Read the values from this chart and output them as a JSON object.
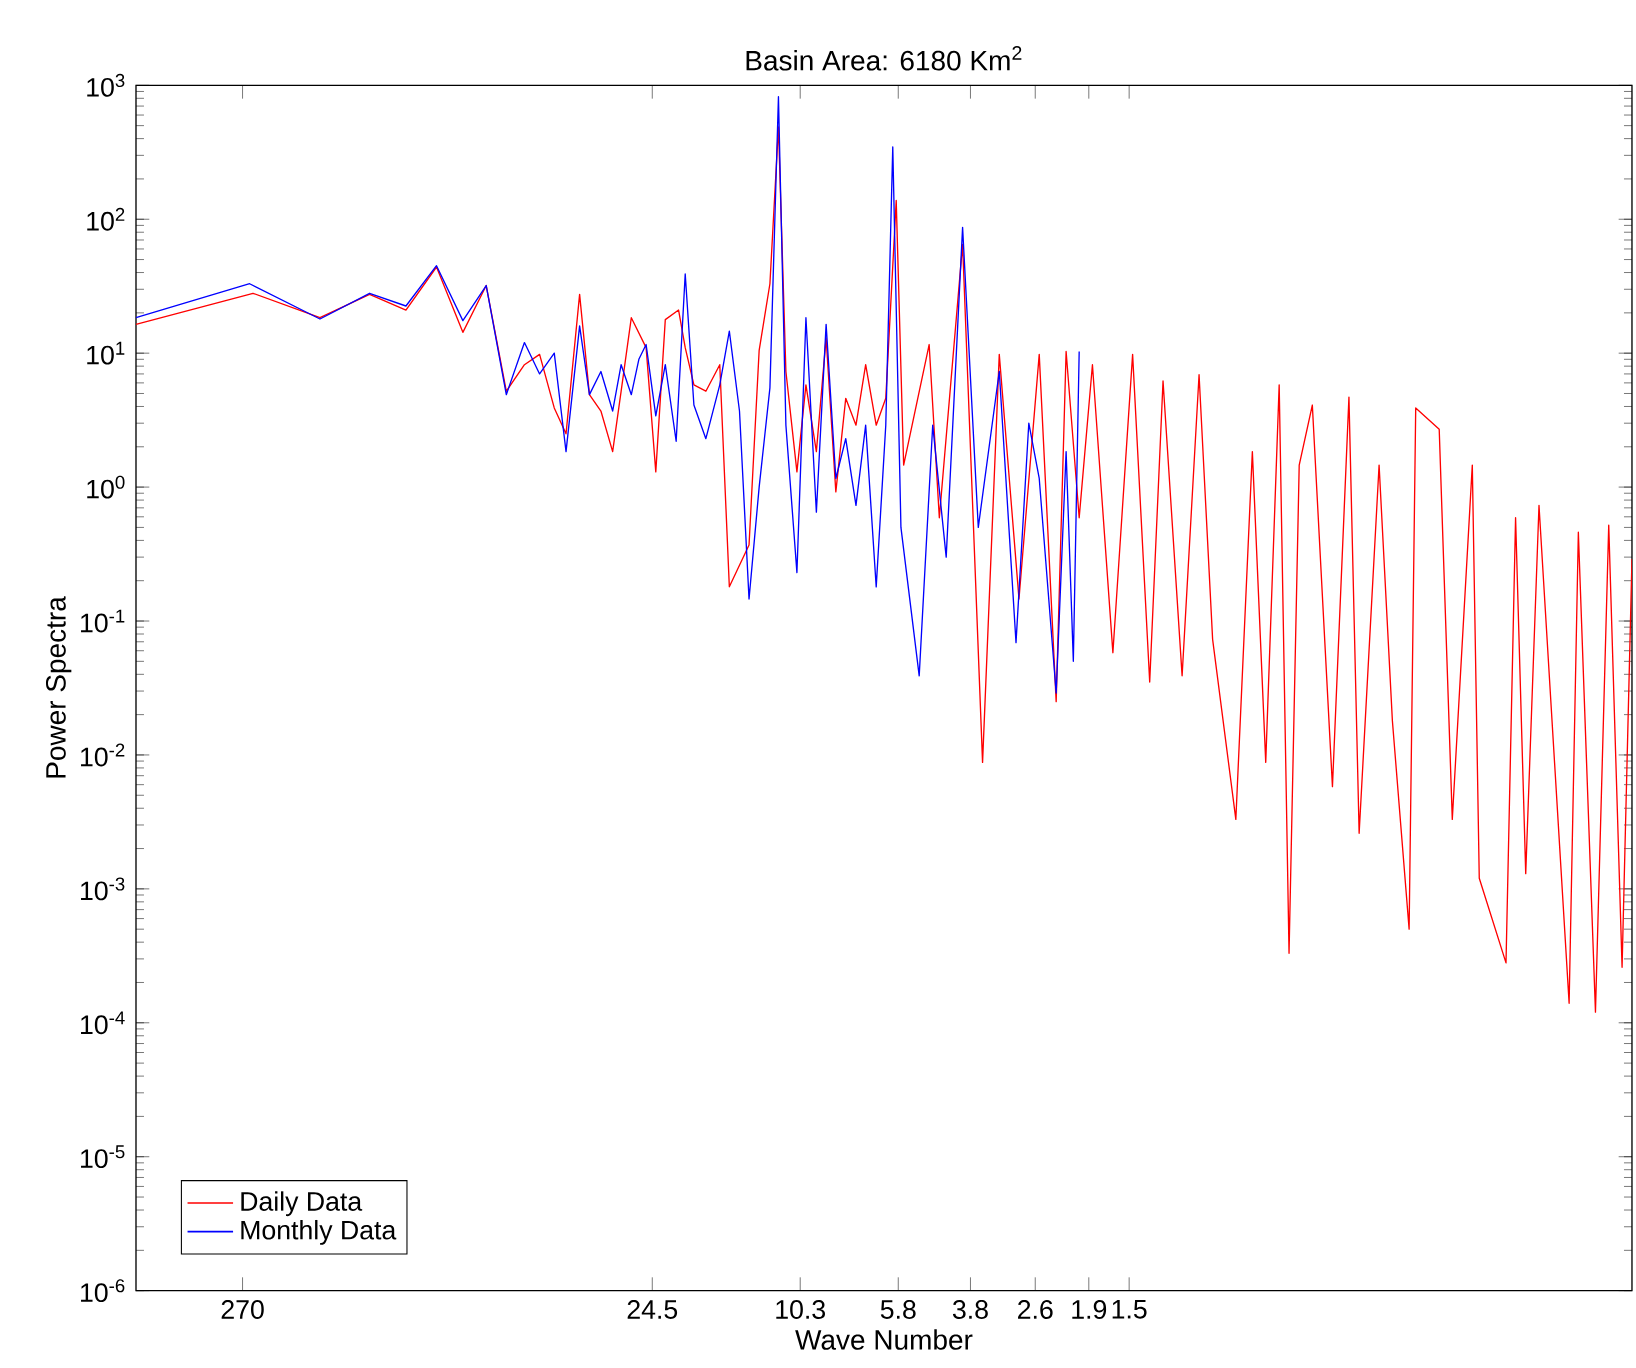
{
  "chart_data": {
    "type": "line",
    "title": "Basin Area: 6180 Km$^{2}$",
    "xlabel": "Wave Number",
    "ylabel": "Power Spectra",
    "log": "xy",
    "legend": "bottom left",
    "grid": false,
    "xlim": [
      504,
      0.0789
    ],
    "ylim": [
      1e-06,
      1000
    ],
    "xticks": [
      270,
      24.5,
      10.3,
      5.8,
      3.8,
      2.6,
      1.9,
      1.5
    ],
    "yticks": [
      {
        "value": 1e-06,
        "label": "10$^{-6}$"
      },
      {
        "value": 1e-05,
        "label": "10$^{-5}$"
      },
      {
        "value": 0.0001,
        "label": "10$^{-4}$"
      },
      {
        "value": 0.001,
        "label": "10$^{-3}$"
      },
      {
        "value": 0.01,
        "label": "10$^{-2}$"
      },
      {
        "value": 0.1,
        "label": "10$^{-1}$"
      },
      {
        "value": 1,
        "label": "10$^{0}$"
      },
      {
        "value": 10,
        "label": "10$^{1}$"
      },
      {
        "value": 100,
        "label": "10$^{2}$"
      },
      {
        "value": 1000,
        "label": "10$^{3}$"
      }
    ],
    "series": [
      {
        "name": "Daily Data",
        "color": "#ff0000",
        "x": [
          504,
          254,
          171.6,
          128.3,
          103.7,
          86.7,
          74.3,
          64.8,
          57.6,
          51.8,
          47.4,
          43.5,
          40.6,
          37.5,
          35.4,
          33.1,
          30.9,
          29.4,
          27.7,
          25.4,
          24.0,
          22.7,
          21.0,
          20.2,
          19.2,
          17.9,
          16.5,
          15.6,
          13.9,
          13.1,
          12.3,
          11.7,
          11.2,
          10.5,
          9.96,
          9.37,
          8.85,
          8.36,
          7.89,
          7.43,
          7.02,
          6.6,
          6.24,
          5.87,
          5.62,
          4.84,
          4.56,
          3.98,
          3.54,
          3.21,
          2.86,
          2.54,
          2.3,
          2.17,
          2.01,
          1.86,
          1.65,
          1.47,
          1.33,
          1.23,
          1.1,
          0.996,
          0.92,
          0.803,
          0.729,
          0.674,
          0.623,
          0.588,
          0.554,
          0.513,
          0.456,
          0.414,
          0.39,
          0.347,
          0.321,
          0.291,
          0.28,
          0.244,
          0.226,
          0.201,
          0.193,
          0.165,
          0.156,
          0.147,
          0.136,
          0.114,
          0.108,
          0.0977,
          0.0904,
          0.0836,
          0.0789
        ],
        "values": [
          16.4,
          28,
          18.4,
          27.5,
          21,
          44,
          14.3,
          32,
          5.2,
          8.2,
          9.8,
          3.9,
          2.5,
          27.5,
          4.9,
          3.7,
          1.84,
          5.2,
          18.4,
          11,
          1.3,
          17.8,
          21,
          11,
          5.8,
          5.2,
          8.2,
          0.18,
          0.37,
          10.5,
          33,
          490,
          7.3,
          1.3,
          5.8,
          1.84,
          13,
          0.92,
          4.6,
          2.9,
          8.2,
          2.9,
          4.6,
          138,
          1.46,
          11.6,
          0.59,
          65,
          0.0088,
          9.8,
          0.146,
          9.8,
          0.025,
          10.3,
          0.59,
          8.2,
          0.058,
          9.8,
          0.035,
          6.2,
          0.039,
          6.9,
          0.073,
          0.0033,
          1.84,
          0.0088,
          5.8,
          0.00033,
          1.46,
          4.1,
          0.0058,
          4.7,
          0.0026,
          1.46,
          0.018,
          0.0005,
          3.9,
          2.7,
          0.0033,
          1.46,
          0.0012,
          0.00028,
          0.59,
          0.0013,
          0.73,
          0.00014,
          0.46,
          0.00012,
          0.52,
          0.00026,
          0.29
        ]
      },
      {
        "name": "Monthly Data",
        "color": "#0000ff",
        "x": [
          504,
          259,
          171.6,
          128.3,
          103.7,
          86.7,
          74.3,
          64.8,
          57.6,
          51.8,
          47.4,
          43.5,
          40.6,
          37.5,
          35.4,
          33.1,
          30.9,
          29.4,
          27.7,
          26.5,
          25.4,
          24.0,
          22.7,
          21.3,
          20.2,
          19.2,
          17.9,
          16.5,
          15.6,
          14.7,
          13.9,
          13.1,
          12.3,
          11.7,
          11.2,
          10.5,
          9.96,
          9.37,
          8.85,
          8.36,
          7.89,
          7.43,
          7.02,
          6.6,
          6.24,
          5.99,
          5.71,
          5.13,
          4.74,
          4.38,
          3.98,
          3.63,
          3.21,
          2.91,
          2.7,
          2.54,
          2.3,
          2.17,
          2.08,
          2.01
        ],
        "values": [
          18.4,
          33,
          18,
          28,
          22.5,
          45,
          17.5,
          32,
          4.9,
          12,
          7,
          10,
          1.84,
          16,
          4.9,
          7.3,
          3.7,
          8.2,
          4.9,
          9,
          11.6,
          3.4,
          8.2,
          2.2,
          39,
          4.1,
          2.3,
          5.8,
          14.6,
          3.7,
          0.146,
          1.0,
          5.5,
          822,
          2.9,
          0.23,
          18.4,
          0.65,
          16.4,
          1.16,
          2.3,
          0.73,
          2.9,
          0.18,
          2.9,
          347,
          0.5,
          0.039,
          2.9,
          0.3,
          87,
          0.5,
          7.3,
          0.069,
          3,
          1.16,
          0.029,
          1.84,
          0.05,
          10.3
        ]
      }
    ]
  }
}
